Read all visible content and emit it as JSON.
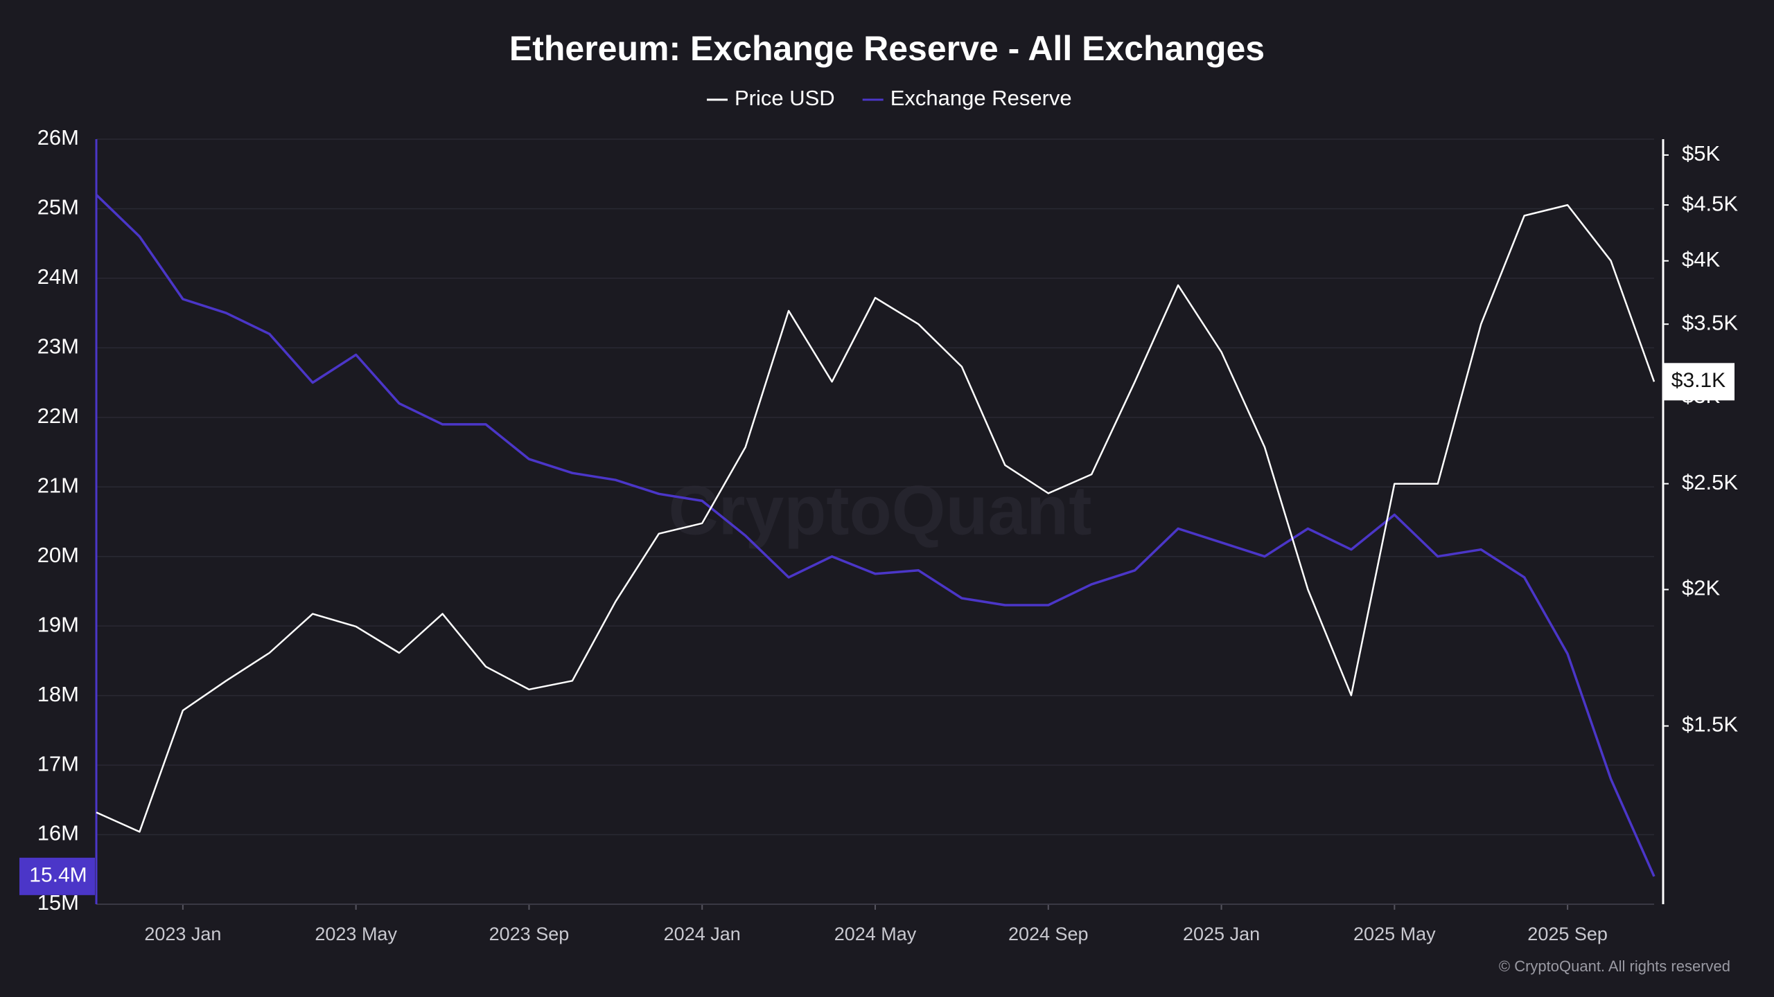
{
  "chart_data": {
    "type": "line",
    "title": "Ethereum: Exchange Reserve - All Exchanges",
    "watermark": "CryptoQuant",
    "footer": "© CryptoQuant. All rights reserved",
    "x": [
      "2022-11",
      "2022-12",
      "2023-01",
      "2023-02",
      "2023-03",
      "2023-04",
      "2023-05",
      "2023-06",
      "2023-07",
      "2023-08",
      "2023-09",
      "2023-10",
      "2023-11",
      "2023-12",
      "2024-01",
      "2024-02",
      "2024-03",
      "2024-04",
      "2024-05",
      "2024-06",
      "2024-07",
      "2024-08",
      "2024-09",
      "2024-10",
      "2024-11",
      "2024-12",
      "2025-01",
      "2025-02",
      "2025-03",
      "2025-04",
      "2025-05",
      "2025-06",
      "2025-07",
      "2025-08",
      "2025-09",
      "2025-10",
      "2025-11"
    ],
    "xlim": [
      "2022-11",
      "2025-11"
    ],
    "xticks": [
      {
        "value": "2023-01",
        "label": "2023 Jan"
      },
      {
        "value": "2023-05",
        "label": "2023 May"
      },
      {
        "value": "2023-09",
        "label": "2023 Sep"
      },
      {
        "value": "2024-01",
        "label": "2024 Jan"
      },
      {
        "value": "2024-05",
        "label": "2024 May"
      },
      {
        "value": "2024-09",
        "label": "2024 Sep"
      },
      {
        "value": "2025-01",
        "label": "2025 Jan"
      },
      {
        "value": "2025-05",
        "label": "2025 May"
      },
      {
        "value": "2025-09",
        "label": "2025 Sep"
      }
    ],
    "ylim": [
      15,
      26
    ],
    "yticks": [
      {
        "value": 15,
        "label": "15M"
      },
      {
        "value": 16,
        "label": "16M"
      },
      {
        "value": 17,
        "label": "17M"
      },
      {
        "value": 18,
        "label": "18M"
      },
      {
        "value": 19,
        "label": "19M"
      },
      {
        "value": 20,
        "label": "20M"
      },
      {
        "value": 21,
        "label": "21M"
      },
      {
        "value": 22,
        "label": "22M"
      },
      {
        "value": 23,
        "label": "23M"
      },
      {
        "value": 24,
        "label": "24M"
      },
      {
        "value": 25,
        "label": "25M"
      },
      {
        "value": 26,
        "label": "26M"
      }
    ],
    "y2lim": [
      1030,
      5170
    ],
    "y2_log": true,
    "y2ticks": [
      {
        "value": 1500,
        "label": "$1.5K"
      },
      {
        "value": 2000,
        "label": "$2K"
      },
      {
        "value": 2500,
        "label": "$2.5K"
      },
      {
        "value": 3000,
        "label": "$3K"
      },
      {
        "value": 3500,
        "label": "$3.5K"
      },
      {
        "value": 4000,
        "label": "$4K"
      },
      {
        "value": 4500,
        "label": "$4.5K"
      },
      {
        "value": 5000,
        "label": "$5K"
      }
    ],
    "grid": true,
    "series": [
      {
        "name": "Price USD",
        "color": "#ffffff",
        "axis": "y2",
        "last_label": "$3.1K",
        "values": [
          1250,
          1200,
          1550,
          1650,
          1750,
          1900,
          1850,
          1750,
          1900,
          1700,
          1620,
          1650,
          1950,
          2250,
          2300,
          2700,
          3600,
          3100,
          3700,
          3500,
          3200,
          2600,
          2450,
          2550,
          3100,
          3800,
          3300,
          2700,
          2000,
          1600,
          2500,
          2500,
          3500,
          4400,
          4500,
          4000,
          3100
        ]
      },
      {
        "name": "Exchange Reserve",
        "color": "#4b36c8",
        "axis": "y",
        "last_label": "15.4M",
        "values": [
          25.2,
          24.6,
          23.7,
          23.5,
          23.2,
          22.5,
          22.9,
          22.2,
          21.9,
          21.9,
          21.4,
          21.2,
          21.1,
          20.9,
          20.8,
          20.3,
          19.7,
          20.0,
          19.75,
          19.8,
          19.4,
          19.3,
          19.3,
          19.6,
          19.8,
          20.4,
          20.2,
          20.0,
          20.4,
          20.1,
          20.6,
          20.0,
          20.1,
          19.7,
          18.6,
          16.8,
          15.4
        ]
      }
    ]
  }
}
